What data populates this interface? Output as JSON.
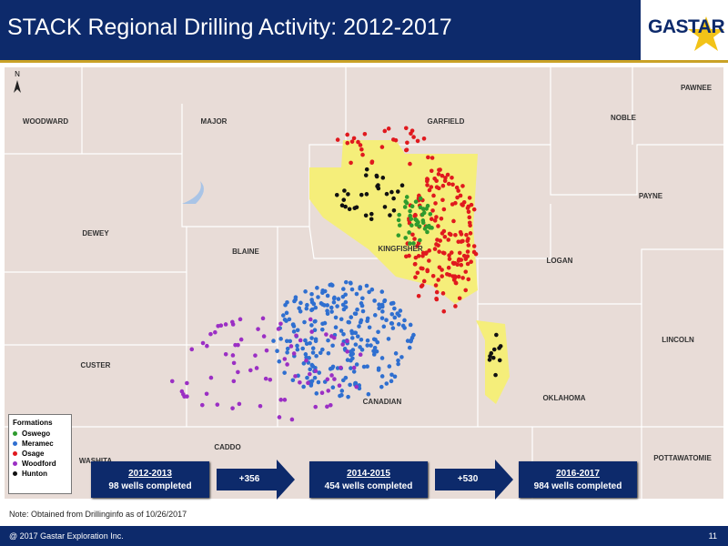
{
  "header": {
    "title": "STACK Regional Drilling Activity: 2012-2017",
    "logo": "GASTAR"
  },
  "map": {
    "north": "N",
    "counties": [
      "WOODWARD",
      "MAJOR",
      "GARFIELD",
      "NOBLE",
      "PAWNEE",
      "DEWEY",
      "PAYNE",
      "KINGFISHER",
      "BLAINE",
      "LOGAN",
      "CUSTER",
      "LINCOLN",
      "CANADIAN",
      "OKLAHOMA",
      "CADDO",
      "WASHITA",
      "POTTAWATOMIE"
    ],
    "legend": {
      "title": "Formations",
      "items": [
        {
          "label": "Oswego",
          "color": "#2e9b2e"
        },
        {
          "label": "Meramec",
          "color": "#2f6fd0"
        },
        {
          "label": "Osage",
          "color": "#e0191e"
        },
        {
          "label": "Woodford",
          "color": "#9b2fc4"
        },
        {
          "label": "Hunton",
          "color": "#111111"
        }
      ]
    }
  },
  "timeline": {
    "periods": [
      {
        "years": "2012-2013",
        "wells": "98 wells completed"
      },
      {
        "years": "2014-2015",
        "wells": "454 wells completed"
      },
      {
        "years": "2016-2017",
        "wells": "984 wells completed"
      }
    ],
    "increments": [
      "+356",
      "+530"
    ]
  },
  "note": "Note: Obtained from Drillinginfo as of 10/26/2017",
  "footer": {
    "copyright": "@ 2017 Gastar Exploration Inc.",
    "page": "11"
  }
}
